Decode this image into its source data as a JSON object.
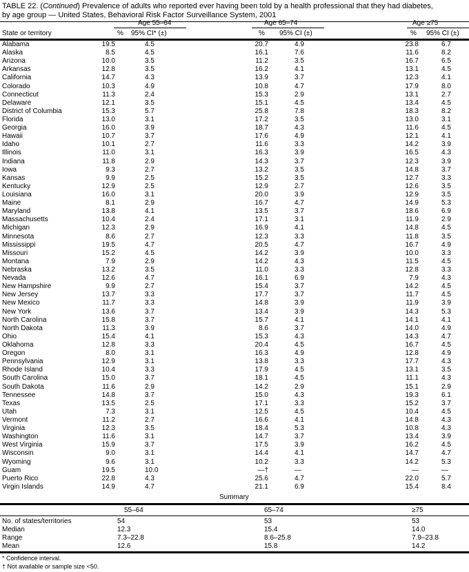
{
  "title": {
    "prefix": "TABLE 22. (",
    "continued": "Continued",
    "line1": ") Prevalence of adults who reported ever having been told by a health professional that they had diabetes,",
    "line2": "by age group — United States, Behavioral Risk Factor Surveillance System, 2001"
  },
  "header": {
    "state": "State or territory",
    "groups": [
      "Age 55–64",
      "Age 65–74",
      "Age ≥75"
    ],
    "pct": "%",
    "ci1": "95% CI* (±)",
    "ci": "95% CI (±)"
  },
  "rows": [
    [
      "Alabama",
      "19.5",
      "4.5",
      "20.7",
      "4.9",
      "23.8",
      "6.7"
    ],
    [
      "Alaska",
      "8.5",
      "4.5",
      "16.1",
      "7.6",
      "11.6",
      "8.2"
    ],
    [
      "Arizona",
      "10.0",
      "3.5",
      "11.2",
      "3.5",
      "16.7",
      "6.5"
    ],
    [
      "Arkansas",
      "12.8",
      "3.5",
      "16.2",
      "4.1",
      "13.1",
      "4.5"
    ],
    [
      "California",
      "14.7",
      "4.3",
      "13.9",
      "3.7",
      "12.3",
      "4.1"
    ],
    [
      "Colorado",
      "10.3",
      "4.9",
      "10.8",
      "4.7",
      "17.9",
      "8.0"
    ],
    [
      "Connecticut",
      "11.3",
      "2.4",
      "15.3",
      "2.9",
      "13.1",
      "2.7"
    ],
    [
      "Delaware",
      "12.1",
      "3.5",
      "15.1",
      "4.5",
      "13.4",
      "4.5"
    ],
    [
      "District of Columbia",
      "15.3",
      "5.7",
      "25.8",
      "7.8",
      "18.3",
      "8.2"
    ],
    [
      "Florida",
      "13.0",
      "3.1",
      "17.2",
      "3.5",
      "13.0",
      "3.1"
    ],
    [
      "Georgia",
      "16.0",
      "3.9",
      "18.7",
      "4.3",
      "11.6",
      "4.5"
    ],
    [
      "Hawaii",
      "10.7",
      "3.7",
      "17.6",
      "4.9",
      "12.1",
      "4.1"
    ],
    [
      "Idaho",
      "10.1",
      "2.7",
      "11.6",
      "3.3",
      "14.2",
      "3.9"
    ],
    [
      "Illinois",
      "11.0",
      "3.1",
      "16.3",
      "3.9",
      "16.5",
      "4.3"
    ],
    [
      "Indiana",
      "11.8",
      "2.9",
      "14.3",
      "3.7",
      "12.3",
      "3.9"
    ],
    [
      "Iowa",
      "9.3",
      "2.7",
      "13.2",
      "3.5",
      "14.8",
      "3.7"
    ],
    [
      "Kansas",
      "9.9",
      "2.5",
      "15.2",
      "3.5",
      "12.7",
      "3.3"
    ],
    [
      "Kentucky",
      "12.9",
      "2.5",
      "12.9",
      "2.7",
      "12.6",
      "3.5"
    ],
    [
      "Louisiana",
      "16.0",
      "3.1",
      "20.0",
      "3.9",
      "12.9",
      "3.5"
    ],
    [
      "Maine",
      "8.1",
      "2.9",
      "16.7",
      "4.7",
      "14.9",
      "5.3"
    ],
    [
      "Maryland",
      "13.8",
      "4.1",
      "13.5",
      "3.7",
      "18.6",
      "6.9"
    ],
    [
      "Massachusetts",
      "10.4",
      "2.4",
      "17.1",
      "3.1",
      "11.9",
      "2.9"
    ],
    [
      "Michigan",
      "12.3",
      "2.9",
      "16.9",
      "4.1",
      "14.8",
      "4.5"
    ],
    [
      "Minnesota",
      "8.6",
      "2.7",
      "12.3",
      "3.3",
      "11.8",
      "3.5"
    ],
    [
      "Mississippi",
      "19.5",
      "4.7",
      "20.5",
      "4.7",
      "16.7",
      "4.9"
    ],
    [
      "Missouri",
      "15.2",
      "4.5",
      "14.2",
      "3.9",
      "10.0",
      "3.3"
    ],
    [
      "Montana",
      "7.9",
      "2.9",
      "14.2",
      "4.3",
      "11.5",
      "4.5"
    ],
    [
      "Nebraska",
      "13.2",
      "3.5",
      "11.0",
      "3.3",
      "12.8",
      "3.3"
    ],
    [
      "Nevada",
      "12.6",
      "4.7",
      "16.1",
      "6.9",
      "7.9",
      "4.3"
    ],
    [
      "New Hampshire",
      "9.9",
      "2.7",
      "15.4",
      "3.7",
      "14.2",
      "4.5"
    ],
    [
      "New Jersey",
      "13.7",
      "3.3",
      "17.7",
      "3.7",
      "11.7",
      "4.5"
    ],
    [
      "New Mexico",
      "11.7",
      "3.3",
      "14.8",
      "3.9",
      "11.9",
      "3.9"
    ],
    [
      "New York",
      "13.6",
      "3.7",
      "13.4",
      "3.9",
      "14.3",
      "5.3"
    ],
    [
      "North Carolina",
      "15.8",
      "3.7",
      "15.7",
      "4.1",
      "14.1",
      "4.1"
    ],
    [
      "North Dakota",
      "11.3",
      "3.9",
      "8.6",
      "3.7",
      "14.0",
      "4.9"
    ],
    [
      "Ohio",
      "15.4",
      "4.1",
      "15.3",
      "4.3",
      "14.3",
      "4.7"
    ],
    [
      "Oklahoma",
      "12.8",
      "3.3",
      "20.4",
      "4.5",
      "16.7",
      "4.5"
    ],
    [
      "Oregon",
      "8.0",
      "3.1",
      "16.3",
      "4.9",
      "12.8",
      "4.9"
    ],
    [
      "Pennsylvania",
      "12.9",
      "3.1",
      "13.8",
      "3.3",
      "17.7",
      "4.3"
    ],
    [
      "Rhode Island",
      "10.4",
      "3.3",
      "17.9",
      "4.5",
      "13.1",
      "3.5"
    ],
    [
      "South Carolina",
      "15.0",
      "3.7",
      "18.1",
      "4.5",
      "11.1",
      "4.3"
    ],
    [
      "South Dakota",
      "11.6",
      "2.9",
      "14.2",
      "2.9",
      "15.1",
      "2.9"
    ],
    [
      "Tennessee",
      "14.8",
      "3.7",
      "15.0",
      "4.3",
      "19.3",
      "6.1"
    ],
    [
      "Texas",
      "13.5",
      "2.5",
      "17.1",
      "3.3",
      "15.2",
      "3.7"
    ],
    [
      "Utah",
      "7.3",
      "3.1",
      "12.5",
      "4.5",
      "10.4",
      "4.5"
    ],
    [
      "Vermont",
      "11.2",
      "2.7",
      "16.6",
      "4.1",
      "14.8",
      "4.3"
    ],
    [
      "Virginia",
      "12.3",
      "3.5",
      "18.4",
      "5.3",
      "10.8",
      "4.3"
    ],
    [
      "Washington",
      "11.6",
      "3.1",
      "14.7",
      "3.7",
      "13.4",
      "3.9"
    ],
    [
      "West Virginia",
      "15.9",
      "3.7",
      "17.5",
      "3.9",
      "16.2",
      "4.5"
    ],
    [
      "Wisconsin",
      "9.0",
      "3.1",
      "14.4",
      "4.1",
      "14.7",
      "4.7"
    ],
    [
      "Wyoming",
      "9.6",
      "3.1",
      "10.2",
      "3.3",
      "14.2",
      "5.3"
    ],
    [
      "Guam",
      "19.5",
      "10.0",
      "—†",
      "—",
      "—",
      "—"
    ],
    [
      "Puerto Rico",
      "22.8",
      "4.3",
      "25.6",
      "4.7",
      "22.0",
      "5.7"
    ],
    [
      "Virgin Islands",
      "14.9",
      "4.7",
      "21.1",
      "6.9",
      "15.4",
      "8.4"
    ]
  ],
  "summary": {
    "title": "Summary",
    "cols": [
      "55–64",
      "65–74",
      "≥75"
    ],
    "rows": [
      [
        "No. of states/territories",
        "54",
        "53",
        "53"
      ],
      [
        "Median",
        "12.3",
        "15.4",
        "14.0"
      ],
      [
        "Range",
        "7.3–22.8",
        "8.6–25.8",
        "7.9–23.8"
      ],
      [
        "Mean",
        "12.6",
        "15.8",
        "14.2"
      ]
    ]
  },
  "footnotes": [
    "* Confidence interval.",
    "† Not available or sample size <50."
  ]
}
